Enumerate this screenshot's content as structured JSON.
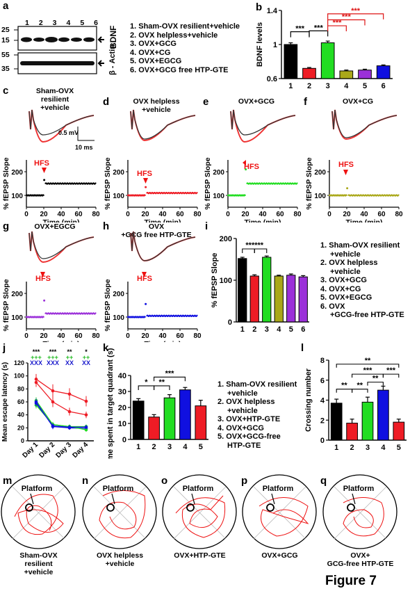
{
  "panel_letters": [
    "a",
    "b",
    "c",
    "d",
    "e",
    "f",
    "g",
    "h",
    "i",
    "j",
    "k",
    "l",
    "m",
    "n",
    "o",
    "p",
    "q"
  ],
  "panel_a": {
    "lane_numbers": [
      "1",
      "2",
      "3",
      "4",
      "5",
      "6"
    ],
    "mw_markers": [
      "25",
      "15",
      "55",
      "35"
    ],
    "band_labels": [
      "BDNF",
      "β - Actin"
    ],
    "legend": [
      "1. Sham-OVX resilient+vehicle",
      "2. OVX helpless+vehicle",
      "3. OVX+GCG",
      "4. OVX+CG",
      "5. OVX+EGCG",
      "6. OVX+GCG free HTP-GTE"
    ]
  },
  "panel_c": {
    "title": [
      "Sham-OVX",
      "resilient",
      "+vehicle"
    ],
    "scalebar_v": "0.5 mV",
    "scalebar_h": "10 ms"
  },
  "panel_d": {
    "title": [
      "OVX helpless",
      "+vehicle"
    ]
  },
  "panel_e": {
    "title": [
      "OVX+GCG"
    ]
  },
  "panel_f": {
    "title": [
      "OVX+CG"
    ]
  },
  "panel_g": {
    "title": [
      "OVX+EGCG"
    ]
  },
  "panel_h": {
    "title": [
      "OVX",
      "+GCG free HTP-GTE"
    ]
  },
  "hfs_label": "HFS",
  "fepsp_axes": {
    "ylabel": "% fEPSP Slope",
    "xlabel": "Time (min)",
    "yticks": [
      "100",
      "200"
    ],
    "xticks": [
      "0",
      "20",
      "40",
      "60",
      "80"
    ]
  },
  "panel_i": {
    "legend": [
      "1. Sham-OVX resilient",
      "+vehicle",
      "2. OVX helpless",
      "+vehicle",
      "3. OVX+GCG",
      "4. OVX+CG",
      "5. OVX+EGCG",
      "6. OVX",
      "+GCG-free HTP-GTE"
    ],
    "sig": "******"
  },
  "panel_k_legend": [
    "1. Sham-OVX resilient",
    "+vehicle",
    "2. OVX helpless",
    "+vehicle",
    "3. OVX+HTP-GTE",
    "4. OVX+GCG",
    "5. OVX+GCG-free",
    "HTP-GTE"
  ],
  "panel_j": {
    "sig_rows": [
      [
        "***",
        "***",
        "**",
        "*"
      ],
      [
        "+++",
        "+++",
        "++",
        "++"
      ],
      [
        "XXX",
        "XXX",
        "XX",
        "XX"
      ]
    ]
  },
  "maze": {
    "platform_label": "Platform",
    "captions": [
      [
        "Sham-OVX",
        "resilient",
        "+vehicle"
      ],
      [
        "OVX helpless",
        "+vehicle"
      ],
      [
        "OVX+HTP-GTE"
      ],
      [
        "OVX+GCG"
      ],
      [
        "OVX+",
        "GCG-free HTP-GTE"
      ]
    ]
  },
  "figure_label": "Figure 7",
  "colors": {
    "sham": "#000000",
    "helpless": "#ee1c25",
    "gcg": "#22dd22",
    "cg": "#aaa81a",
    "egcg": "#9b30d9",
    "free": "#1010e0",
    "htp": "#1010e0",
    "sig_red": "#dd1111",
    "sig_green": "#22bb22",
    "sig_blue": "#1a1acc"
  },
  "chart_data": [
    {
      "type": "bar",
      "panel": "b",
      "categories": [
        "1",
        "2",
        "3",
        "4",
        "5",
        "6"
      ],
      "values": [
        1.0,
        0.72,
        1.02,
        0.69,
        0.7,
        0.75
      ],
      "errors": [
        0.02,
        0.01,
        0.02,
        0.01,
        0.01,
        0.01
      ],
      "ylabel": "BDNF levels",
      "ylim": [
        0.6,
        1.4
      ],
      "yticks": [
        0.6,
        1.0,
        1.4
      ],
      "sig": [
        "***",
        "***",
        "***",
        "***",
        "***",
        "***"
      ]
    },
    {
      "type": "bar",
      "panel": "i",
      "categories": [
        "1",
        "2",
        "3",
        "4",
        "5",
        "6"
      ],
      "values": [
        152,
        110,
        155,
        110,
        112,
        108
      ],
      "errors": [
        3,
        3,
        3,
        2,
        3,
        3
      ],
      "ylabel": "% fEPSP Slope",
      "ylim": [
        0,
        200
      ],
      "yticks": [
        0,
        100,
        200
      ]
    },
    {
      "type": "line",
      "panel": "j",
      "x": [
        "Day 1",
        "Day 2",
        "Day 3",
        "Day 4"
      ],
      "ylabel": "Mean escape latency (s)",
      "ylim": [
        0,
        120
      ],
      "yticks": [
        0,
        20,
        40,
        60,
        80,
        100,
        120
      ],
      "series": [
        {
          "values": [
            95,
            77,
            72,
            61
          ],
          "errors": [
            8,
            10,
            9,
            8
          ]
        },
        {
          "values": [
            90,
            60,
            45,
            40
          ],
          "errors": [
            7,
            8,
            6,
            5
          ]
        },
        {
          "values": [
            62,
            25,
            22,
            22
          ],
          "errors": [
            5,
            4,
            3,
            3
          ]
        },
        {
          "values": [
            60,
            22,
            20,
            19
          ],
          "errors": [
            5,
            4,
            3,
            3
          ]
        },
        {
          "values": [
            55,
            25,
            22,
            17
          ],
          "errors": [
            5,
            4,
            3,
            3
          ]
        },
        {
          "values": [
            58,
            23,
            21,
            21
          ],
          "errors": [
            5,
            4,
            3,
            3
          ]
        }
      ]
    },
    {
      "type": "bar",
      "panel": "k",
      "categories": [
        "1",
        "2",
        "3",
        "4",
        "5"
      ],
      "values": [
        24,
        14,
        26,
        31,
        21
      ],
      "errors": [
        1.5,
        1.5,
        2,
        1.5,
        3.5
      ],
      "ylabel": "Time spent in target quadrant (s)",
      "ylim": [
        0,
        40
      ],
      "yticks": [
        0,
        10,
        20,
        30,
        40
      ],
      "sig": [
        "*",
        "**",
        "***"
      ]
    },
    {
      "type": "bar",
      "panel": "l",
      "categories": [
        "1",
        "2",
        "3",
        "4",
        "5"
      ],
      "values": [
        3.7,
        1.7,
        3.8,
        5.0,
        1.8
      ],
      "errors": [
        0.4,
        0.4,
        0.5,
        0.4,
        0.3
      ],
      "ylabel": "Crossing number",
      "ylim": [
        0,
        8
      ],
      "yticks": [
        0,
        2,
        4,
        6,
        8
      ],
      "sig": [
        "**",
        "**",
        "***",
        "**",
        "**",
        "***"
      ]
    }
  ]
}
